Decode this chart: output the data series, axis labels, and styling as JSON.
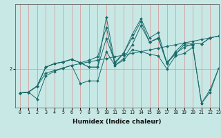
{
  "xlabel": "Humidex (Indice chaleur)",
  "ylabel": "",
  "bg_color": "#c8e8e5",
  "line_color": "#1a6b6b",
  "grid_color": "#d4a0a0",
  "xlim": [
    -0.5,
    23
  ],
  "ylim": [
    1.55,
    2.75
  ],
  "yticks": [
    2
  ],
  "xticks": [
    0,
    1,
    2,
    3,
    4,
    5,
    6,
    7,
    8,
    9,
    10,
    11,
    12,
    13,
    14,
    15,
    16,
    17,
    18,
    19,
    20,
    21,
    22,
    23
  ],
  "lines": [
    [
      0,
      1.72,
      1,
      1.73,
      2,
      1.8,
      3,
      1.95,
      4,
      1.98,
      5,
      2.01,
      6,
      2.04,
      7,
      2.06,
      8,
      2.08,
      9,
      2.1,
      10,
      2.12,
      11,
      2.14,
      12,
      2.16,
      13,
      2.18,
      14,
      2.2,
      15,
      2.22,
      16,
      2.24,
      17,
      2.26,
      18,
      2.28,
      19,
      2.3,
      20,
      2.32,
      21,
      2.34,
      22,
      2.36,
      23,
      2.38
    ],
    [
      0,
      1.72,
      1,
      1.73,
      2,
      1.65,
      3,
      1.92,
      4,
      1.97,
      5,
      2.01,
      6,
      2.04,
      7,
      1.83,
      8,
      1.86,
      9,
      1.86,
      10,
      2.2,
      11,
      2.04,
      12,
      2.1,
      13,
      2.22,
      14,
      2.2,
      15,
      2.17,
      16,
      2.15,
      17,
      2.0,
      18,
      2.15,
      19,
      2.18,
      20,
      2.25,
      21,
      1.6,
      22,
      1.76,
      23,
      2.01
    ],
    [
      0,
      1.72,
      1,
      1.73,
      2,
      1.8,
      3,
      2.02,
      4,
      2.06,
      5,
      2.08,
      6,
      2.11,
      7,
      2.07,
      8,
      2.1,
      9,
      2.14,
      10,
      2.48,
      11,
      2.04,
      12,
      2.12,
      13,
      2.28,
      14,
      2.5,
      15,
      2.31,
      16,
      2.35,
      17,
      2.08,
      18,
      2.17,
      19,
      2.28,
      20,
      2.27,
      21,
      1.6,
      22,
      1.73,
      23,
      2.01
    ],
    [
      0,
      1.72,
      1,
      1.73,
      2,
      1.8,
      3,
      2.02,
      4,
      2.06,
      5,
      2.08,
      6,
      2.11,
      7,
      2.07,
      8,
      2.02,
      9,
      2.02,
      10,
      2.35,
      11,
      2.08,
      12,
      2.18,
      13,
      2.36,
      14,
      2.55,
      15,
      2.31,
      16,
      2.36,
      17,
      2.06,
      18,
      2.18,
      19,
      2.25,
      20,
      2.29,
      21,
      2.29,
      22,
      2.36,
      23,
      2.38
    ],
    [
      0,
      1.72,
      1,
      1.73,
      2,
      1.8,
      3,
      2.02,
      4,
      2.06,
      5,
      2.08,
      6,
      2.11,
      7,
      2.07,
      8,
      2.02,
      9,
      2.02,
      10,
      2.6,
      11,
      2.06,
      12,
      2.18,
      13,
      2.4,
      14,
      2.58,
      15,
      2.36,
      16,
      2.42,
      17,
      2.06,
      18,
      2.2,
      19,
      2.3,
      20,
      2.29,
      21,
      2.29,
      22,
      2.36,
      23,
      2.38
    ]
  ]
}
